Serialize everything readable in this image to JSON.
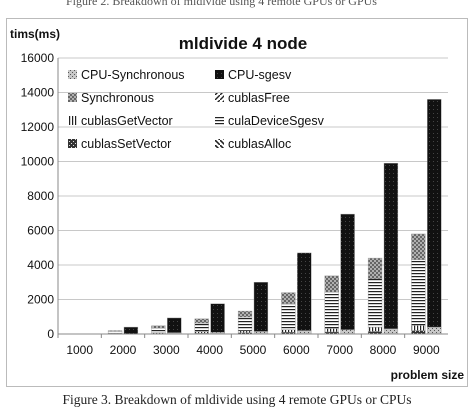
{
  "caption_top": "Figure 2.   Breakdown of mldivide using 4 remote GPUs or GPUs",
  "caption_bottom": "Figure 3.   Breakdown of mldivide using 4 remote GPUs or CPUs",
  "chart_data": {
    "type": "bar",
    "title": "mldivide 4 node",
    "ylabel": "tims(ms)",
    "xlabel": "problem size",
    "ylim": [
      0,
      16000
    ],
    "yticks": [
      0,
      2000,
      4000,
      6000,
      8000,
      10000,
      12000,
      14000,
      16000
    ],
    "categories": [
      "1000",
      "2000",
      "3000",
      "4000",
      "5000",
      "6000",
      "7000",
      "8000",
      "9000"
    ],
    "grid": true,
    "legend_position": "top-left",
    "stacks": [
      {
        "name": "cpu-stack",
        "series": [
          "CPU-Synchronous",
          "CPU-sgesv"
        ]
      },
      {
        "name": "gpu-stack",
        "series": [
          "cublasSetVector",
          "cublasGetVector",
          "cublasAlloc",
          "culaDeviceSgesv",
          "cublasFree",
          "Synchronous"
        ]
      }
    ],
    "series": [
      {
        "name": "CPU-Synchronous",
        "stack": "cpu-stack",
        "values": [
          0,
          0,
          80,
          100,
          150,
          200,
          250,
          300,
          400
        ],
        "color": "#9a9a9a",
        "pattern": "speckle-light"
      },
      {
        "name": "CPU-sgesv",
        "stack": "cpu-stack",
        "values": [
          0,
          400,
          850,
          1650,
          2850,
          4500,
          6700,
          9600,
          13200
        ],
        "color": "#1a1a1a",
        "pattern": "solid-dark"
      },
      {
        "name": "Synchronous",
        "stack": "gpu-stack",
        "values": [
          0,
          50,
          150,
          250,
          350,
          650,
          950,
          1200,
          1500
        ],
        "color": "#8a8a8a",
        "pattern": "checker"
      },
      {
        "name": "cublasFree",
        "stack": "gpu-stack",
        "values": [
          0,
          0,
          0,
          0,
          0,
          0,
          0,
          0,
          0
        ],
        "color": "#222222",
        "pattern": "diagonal-dash"
      },
      {
        "name": "cublasGetVector",
        "stack": "gpu-stack",
        "values": [
          0,
          30,
          50,
          80,
          100,
          150,
          200,
          250,
          300
        ],
        "color": "#333333",
        "pattern": "vertical-lines"
      },
      {
        "name": "culaDeviceSgesv",
        "stack": "gpu-stack",
        "values": [
          0,
          100,
          250,
          500,
          800,
          1500,
          2100,
          2800,
          3800
        ],
        "color": "#333333",
        "pattern": "horizontal-lines"
      },
      {
        "name": "cublasSetVector",
        "stack": "gpu-stack",
        "values": [
          0,
          20,
          30,
          50,
          80,
          100,
          120,
          150,
          200
        ],
        "color": "#222222",
        "pattern": "cross-dots"
      },
      {
        "name": "cublasAlloc",
        "stack": "gpu-stack",
        "values": [
          0,
          0,
          0,
          0,
          0,
          0,
          0,
          0,
          0
        ],
        "color": "#222222",
        "pattern": "diagonal-hatch"
      }
    ],
    "legend": [
      {
        "label": "CPU-Synchronous",
        "pattern": "speckle-light"
      },
      {
        "label": "CPU-sgesv",
        "pattern": "solid-dark"
      },
      {
        "label": "Synchronous",
        "pattern": "checker"
      },
      {
        "label": "cublasFree",
        "pattern": "diagonal-dash"
      },
      {
        "label": "cublasGetVector",
        "pattern": "vertical-lines"
      },
      {
        "label": "culaDeviceSgesv",
        "pattern": "horizontal-lines"
      },
      {
        "label": "cublasSetVector",
        "pattern": "cross-dots"
      },
      {
        "label": "cublasAlloc",
        "pattern": "diagonal-hatch"
      }
    ]
  }
}
